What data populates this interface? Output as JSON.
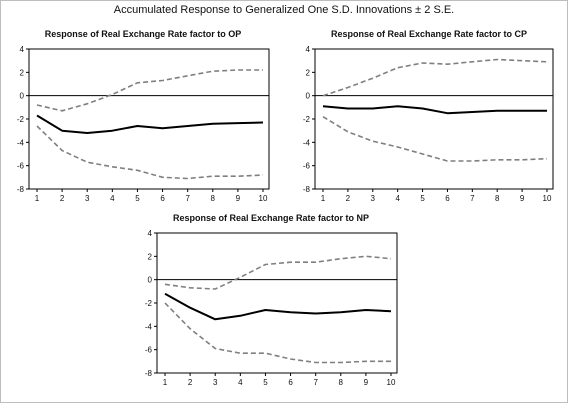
{
  "title": "Accumulated Response to Generalized One S.D. Innovations ± 2 S.E.",
  "colors": {
    "response": "#000000",
    "band": "#7f7f7f",
    "zero_line": "#000000",
    "axis": "#000000"
  },
  "chart_data": [
    {
      "type": "line",
      "title": "Response of Real Exchange Rate factor to OP",
      "xlabel": "",
      "ylabel": "",
      "x": [
        1,
        2,
        3,
        4,
        5,
        6,
        7,
        8,
        9,
        10
      ],
      "xlim": [
        1,
        10
      ],
      "ylim": [
        -8,
        4
      ],
      "y_ticks": [
        4,
        2,
        0,
        -2,
        -4,
        -6,
        -8
      ],
      "x_ticks": [
        1,
        2,
        3,
        4,
        5,
        6,
        7,
        8,
        9,
        10
      ],
      "grid": false,
      "legend": "none",
      "series": [
        {
          "role": "upper",
          "values": [
            -0.8,
            -1.3,
            -0.7,
            0.1,
            1.1,
            1.3,
            1.7,
            2.1,
            2.2,
            2.2
          ]
        },
        {
          "role": "response",
          "values": [
            -1.7,
            -3.0,
            -3.2,
            -3.0,
            -2.6,
            -2.8,
            -2.6,
            -2.4,
            -2.35,
            -2.3
          ]
        },
        {
          "role": "lower",
          "values": [
            -2.6,
            -4.7,
            -5.7,
            -6.1,
            -6.4,
            -7.0,
            -7.1,
            -6.9,
            -6.9,
            -6.8
          ]
        }
      ]
    },
    {
      "type": "line",
      "title": "Response of Real Exchange Rate factor to CP",
      "xlabel": "",
      "ylabel": "",
      "x": [
        1,
        2,
        3,
        4,
        5,
        6,
        7,
        8,
        9,
        10
      ],
      "xlim": [
        1,
        10
      ],
      "ylim": [
        -8,
        4
      ],
      "y_ticks": [
        4,
        2,
        0,
        -2,
        -4,
        -6,
        -8
      ],
      "x_ticks": [
        1,
        2,
        3,
        4,
        5,
        6,
        7,
        8,
        9,
        10
      ],
      "grid": false,
      "legend": "none",
      "series": [
        {
          "role": "upper",
          "values": [
            0.0,
            0.7,
            1.5,
            2.4,
            2.8,
            2.7,
            2.9,
            3.1,
            3.0,
            2.9
          ]
        },
        {
          "role": "response",
          "values": [
            -0.9,
            -1.1,
            -1.1,
            -0.9,
            -1.1,
            -1.5,
            -1.4,
            -1.3,
            -1.3,
            -1.3
          ]
        },
        {
          "role": "lower",
          "values": [
            -1.8,
            -3.1,
            -3.9,
            -4.4,
            -5.0,
            -5.6,
            -5.6,
            -5.5,
            -5.5,
            -5.4
          ]
        }
      ]
    },
    {
      "type": "line",
      "title": "Response of Real Exchange Rate factor to NP",
      "xlabel": "",
      "ylabel": "",
      "x": [
        1,
        2,
        3,
        4,
        5,
        6,
        7,
        8,
        9,
        10
      ],
      "xlim": [
        1,
        10
      ],
      "ylim": [
        -8,
        4
      ],
      "y_ticks": [
        4,
        2,
        0,
        -2,
        -4,
        -6,
        -8
      ],
      "x_ticks": [
        1,
        2,
        3,
        4,
        5,
        6,
        7,
        8,
        9,
        10
      ],
      "grid": false,
      "legend": "none",
      "series": [
        {
          "role": "upper",
          "values": [
            -0.4,
            -0.7,
            -0.8,
            0.2,
            1.3,
            1.5,
            1.5,
            1.8,
            2.0,
            1.8
          ]
        },
        {
          "role": "response",
          "values": [
            -1.2,
            -2.4,
            -3.4,
            -3.1,
            -2.6,
            -2.8,
            -2.9,
            -2.8,
            -2.6,
            -2.7
          ]
        },
        {
          "role": "lower",
          "values": [
            -2.0,
            -4.2,
            -5.9,
            -6.3,
            -6.3,
            -6.8,
            -7.1,
            -7.1,
            -7.0,
            -7.0
          ]
        }
      ]
    }
  ]
}
